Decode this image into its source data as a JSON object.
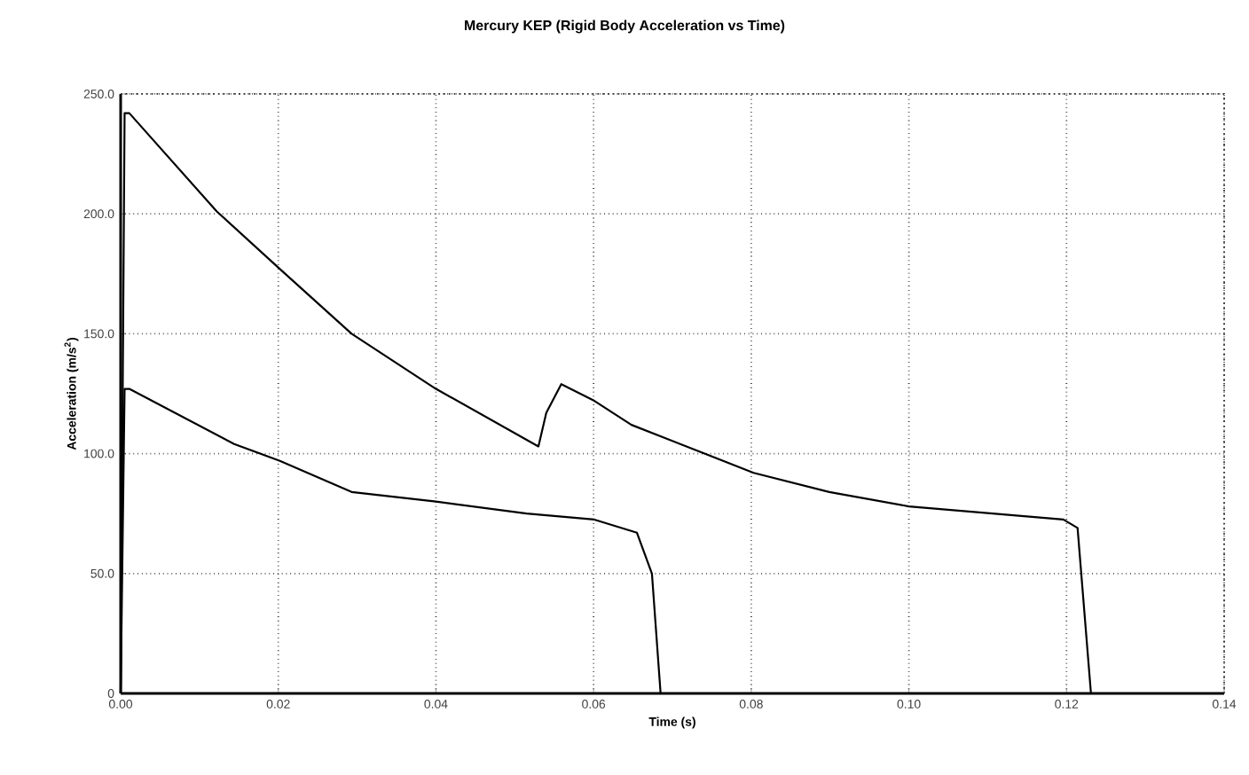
{
  "chart_data": {
    "type": "line",
    "title": "Mercury KEP (Rigid Body Acceleration vs Time)",
    "xlabel": "Time (s)",
    "ylabel": "Acceleration (m/s$^{2}$)",
    "xlim": [
      0,
      0.14
    ],
    "ylim": [
      0,
      250
    ],
    "xticks": [
      {
        "value": 0,
        "label": "0.00"
      },
      {
        "value": 0.02,
        "label": "0.02"
      },
      {
        "value": 0.04,
        "label": "0.04"
      },
      {
        "value": 0.06,
        "label": "0.06"
      },
      {
        "value": 0.08,
        "label": "0.08"
      },
      {
        "value": 0.1,
        "label": "0.10"
      },
      {
        "value": 0.12,
        "label": "0.12"
      },
      {
        "value": 0.14,
        "label": "0.14"
      }
    ],
    "yticks": [
      0,
      {
        "value": 50,
        "label": "50.0"
      },
      {
        "value": 100,
        "label": "100.0"
      },
      {
        "value": 150,
        "label": "150.0"
      },
      {
        "value": 200,
        "label": "200.0"
      },
      {
        "value": 250,
        "label": "250.0"
      }
    ],
    "grid": true,
    "marker": "none",
    "line_style": "solid",
    "series": [
      {
        "color": "#000000",
        "x": [
          0,
          0.0005,
          0.0011,
          0.0122,
          0.0202,
          0.0293,
          0.04,
          0.053,
          0.054,
          0.0559,
          0.0601,
          0.0648,
          0.0803,
          0.0899,
          0.1,
          0.1196,
          0.1214,
          0.1231
        ],
        "values": [
          0,
          242,
          242,
          201,
          177,
          150,
          127,
          103,
          117,
          129,
          122,
          112,
          92,
          84,
          78,
          72.5,
          69,
          0
        ]
      },
      {
        "color": "#000000",
        "x": [
          0,
          0.0005,
          0.0011,
          0.0144,
          0.0202,
          0.0293,
          0.04,
          0.0515,
          0.0601,
          0.0655,
          0.0674,
          0.0685
        ],
        "values": [
          0,
          127,
          127,
          104,
          97,
          84,
          80,
          75,
          72.5,
          67,
          50,
          0
        ]
      }
    ]
  }
}
